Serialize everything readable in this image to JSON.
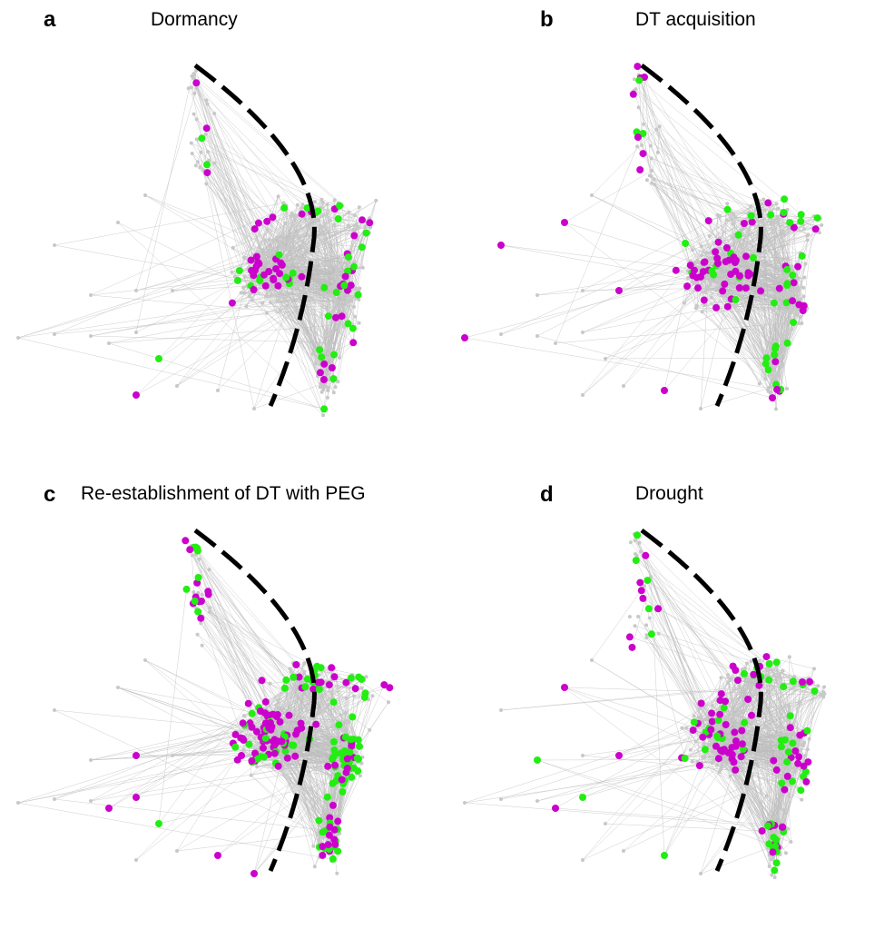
{
  "colors": {
    "background": "#ffffff",
    "edge": "#bdbdbd",
    "node_neutral": "#c8c8c8",
    "node_up": "#cc00cc",
    "node_down": "#22ee11",
    "divider": "#000000"
  },
  "panels": [
    {
      "id": "a",
      "letter": "a",
      "title": "Dormancy",
      "marker_density": {
        "magenta": 0.35,
        "green": 0.2
      }
    },
    {
      "id": "b",
      "letter": "b",
      "title": "DT acquisition",
      "marker_density": {
        "magenta": 0.4,
        "green": 0.3
      }
    },
    {
      "id": "c",
      "letter": "c",
      "title": "Re-establishment of DT with PEG",
      "marker_density": {
        "magenta": 0.8,
        "green": 0.85
      }
    },
    {
      "id": "d",
      "letter": "d",
      "title": "Drought",
      "marker_density": {
        "magenta": 0.6,
        "green": 0.4
      }
    }
  ]
}
